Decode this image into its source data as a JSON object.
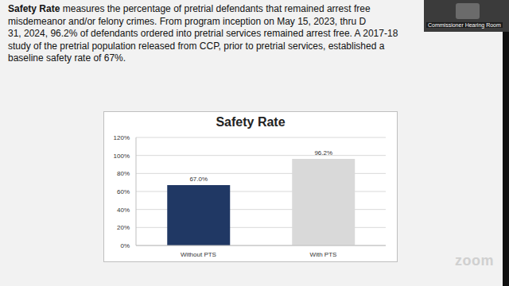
{
  "chart_data": {
    "type": "bar",
    "title": "Safety Rate",
    "categories": [
      "Without PTS",
      "With PTS"
    ],
    "values": [
      67.0,
      96.2
    ],
    "value_labels": [
      "67.0%",
      "96.2%"
    ],
    "colors": [
      "#203864",
      "#d9d9d9"
    ],
    "ylim": [
      0,
      120
    ],
    "yticks": [
      {
        "value": 0,
        "label": "0%"
      },
      {
        "value": 20,
        "label": "20%"
      },
      {
        "value": 40,
        "label": "40%"
      },
      {
        "value": 60,
        "label": "60%"
      },
      {
        "value": 80,
        "label": "80%"
      },
      {
        "value": 100,
        "label": "100%"
      },
      {
        "value": 120,
        "label": "120%"
      }
    ],
    "grid": true,
    "data_labels": true
  },
  "slide_text": {
    "bold_lead": "Safety Rate",
    "lines": [
      " measures the percentage of pretrial defendants that remained arrest free",
      "misdemeanor and/or felony crimes.  From program inception on May 15, 2023, thru D",
      "31, 2024, 96.2% of defendants ordered into pretrial services remained arrest free.  A 2017-18",
      "study of the pretrial population released from CCP, prior to pretrial services, established a",
      "baseline safety rate of 67%."
    ]
  },
  "overlay": {
    "video_label": "Commissioner Hearing Room",
    "logo": "zoom"
  }
}
